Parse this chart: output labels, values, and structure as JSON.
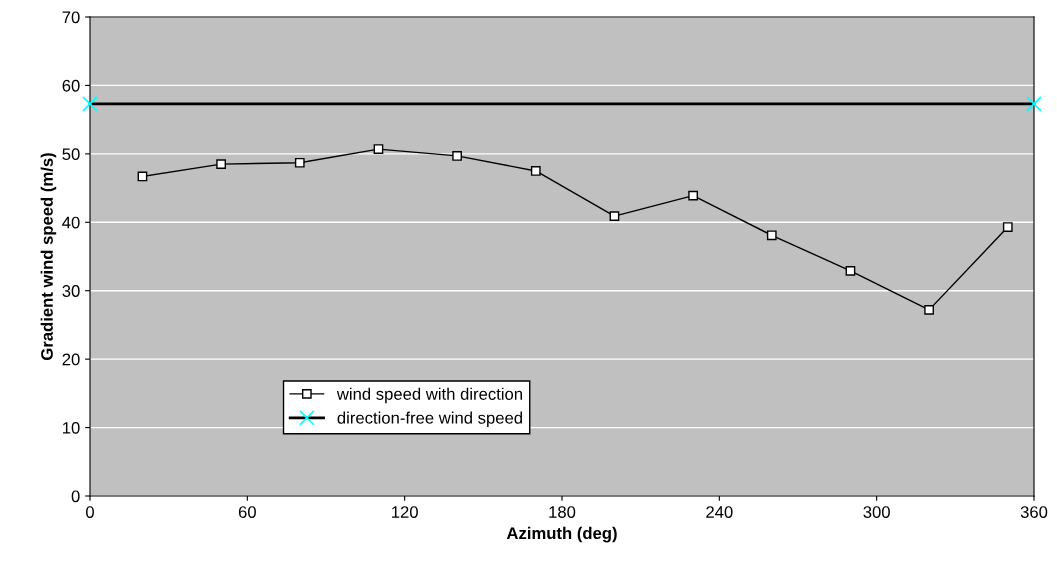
{
  "chart_data": {
    "type": "line",
    "xlabel": "Azimuth (deg)",
    "ylabel": "Gradient wind speed (m/s)",
    "series": [
      {
        "name": "wind speed with direction",
        "color": "#000000",
        "marker": "square",
        "x": [
          20,
          50,
          80,
          110,
          140,
          170,
          200,
          230,
          260,
          290,
          320,
          350
        ],
        "values": [
          46.7,
          48.5,
          48.7,
          50.7,
          49.7,
          47.5,
          40.9,
          43.9,
          38.1,
          32.9,
          27.2,
          39.3
        ]
      },
      {
        "name": "direction-free wind speed",
        "color": "#000000",
        "marker": "cross",
        "x": [
          0,
          360
        ],
        "values": [
          57.3,
          57.3
        ]
      }
    ],
    "xlim": [
      0,
      360
    ],
    "xticks": [
      0,
      60,
      120,
      180,
      240,
      300,
      360
    ],
    "ylim": [
      0,
      70
    ],
    "yticks": [
      0,
      10,
      20,
      30,
      40,
      50,
      60,
      70
    ],
    "grid": "y",
    "legend": "bottom left"
  }
}
